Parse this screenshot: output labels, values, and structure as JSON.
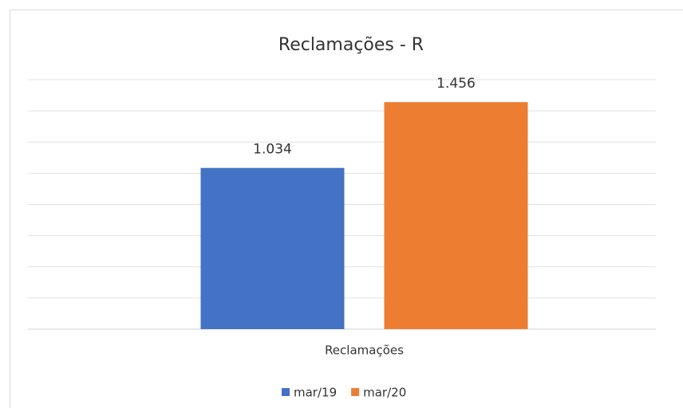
{
  "chart_data": {
    "type": "bar",
    "title": "Reclamações - R",
    "categories": [
      "Reclamações"
    ],
    "series": [
      {
        "name": "mar/19",
        "color": "#4472c4",
        "values": [
          1034
        ],
        "value_labels": [
          "1.034"
        ]
      },
      {
        "name": "mar/20",
        "color": "#ed7d31",
        "values": [
          1456
        ],
        "value_labels": [
          "1.456"
        ]
      }
    ],
    "ylim": [
      0,
      1600
    ],
    "yticks": [
      0,
      200,
      400,
      600,
      800,
      1000,
      1200,
      1400,
      1600
    ],
    "ytick_labels": false,
    "grid": true,
    "legend": "bottom"
  }
}
